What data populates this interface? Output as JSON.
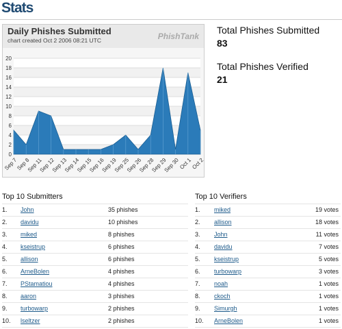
{
  "header": {
    "title": "Stats"
  },
  "chart_data": {
    "type": "area",
    "title": "Daily Phishes Submitted",
    "subtitle": "chart created Oct 2 2006 08:21 UTC",
    "logo": "PhishTank",
    "categories": [
      "Sep 7",
      "Sep 8",
      "Sep 11",
      "Sep 12",
      "Sep 13",
      "Sep 14",
      "Sep 15",
      "Sep 16",
      "Sep 19",
      "Sep 25",
      "Sep 26",
      "Sep 28",
      "Sep 29",
      "Sep 30",
      "Oct 1",
      "Oct 2"
    ],
    "values": [
      5,
      2,
      9,
      8,
      1,
      1,
      1,
      1,
      2,
      4,
      1,
      4,
      18,
      1,
      17,
      5
    ],
    "color": "#2b7bb9",
    "ylim": [
      0,
      20
    ],
    "yticks": [
      0,
      2,
      4,
      6,
      8,
      10,
      12,
      14,
      16,
      18,
      20
    ],
    "grid": true
  },
  "stats": [
    {
      "label": "Total Phishes Submitted",
      "value": "83"
    },
    {
      "label": "Total Phishes Verified",
      "value": "21"
    }
  ],
  "submitters": {
    "title": "Top 10 Submitters",
    "rows": [
      [
        "1.",
        "John",
        "35 phishes"
      ],
      [
        "2.",
        "davidu",
        "10 phishes"
      ],
      [
        "3.",
        "miked",
        "8 phishes"
      ],
      [
        "4.",
        "kseistrup",
        "6 phishes"
      ],
      [
        "5.",
        "allison",
        "6 phishes"
      ],
      [
        "6.",
        "ArneBolen",
        "4 phishes"
      ],
      [
        "7.",
        "PStamatiou",
        "4 phishes"
      ],
      [
        "8.",
        "aaron",
        "3 phishes"
      ],
      [
        "9.",
        "turbowarp",
        "2 phishes"
      ],
      [
        "10.",
        "lseltzer",
        "2 phishes"
      ]
    ]
  },
  "verifiers": {
    "title": "Top 10 Verifiers",
    "rows": [
      [
        "1.",
        "miked",
        "19 votes"
      ],
      [
        "2.",
        "allison",
        "18 votes"
      ],
      [
        "3.",
        "John",
        "11 votes"
      ],
      [
        "4.",
        "davidu",
        "7 votes"
      ],
      [
        "5.",
        "kseistrup",
        "5 votes"
      ],
      [
        "6.",
        "turbowarp",
        "3 votes"
      ],
      [
        "7.",
        "noah",
        "1 votes"
      ],
      [
        "8.",
        "ckoch",
        "1 votes"
      ],
      [
        "9.",
        "Simurgh",
        "1 votes"
      ],
      [
        "10.",
        "ArneBolen",
        "1 votes"
      ]
    ]
  }
}
